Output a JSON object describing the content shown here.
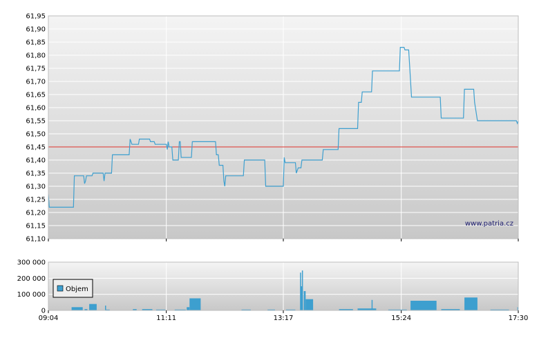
{
  "watermark": "www.patria.cz",
  "colors": {
    "price_line": "#3d9fcf",
    "reference_line": "#e0302a",
    "volume_fill": "#3d9fcf",
    "bg_top": "#f2f2f2",
    "bg_bottom": "#c9c9c9"
  },
  "chart_data": [
    {
      "type": "line",
      "title": "",
      "xlabel": "",
      "ylabel": "",
      "ylim": [
        61.1,
        61.95
      ],
      "xlim": [
        "09:04",
        "17:30"
      ],
      "grid": true,
      "y_ticks": [
        "61,95",
        "61,90",
        "61,85",
        "61,80",
        "61,75",
        "61,70",
        "61,65",
        "61,60",
        "61,55",
        "61,50",
        "61,45",
        "61,40",
        "61,35",
        "61,30",
        "61,25",
        "61,20",
        "61,15",
        "61,10"
      ],
      "x_ticks": [
        "09:04",
        "11:11",
        "13:17",
        "15:24",
        "17:30"
      ],
      "reference_line": 61.45,
      "series": [
        {
          "points": [
            [
              "09:04",
              61.27
            ],
            [
              "09:05",
              61.22
            ],
            [
              "09:31",
              61.22
            ],
            [
              "09:32",
              61.34
            ],
            [
              "09:42",
              61.34
            ],
            [
              "09:43",
              61.31
            ],
            [
              "09:44",
              61.32
            ],
            [
              "09:45",
              61.34
            ],
            [
              "09:51",
              61.34
            ],
            [
              "09:52",
              61.35
            ],
            [
              "10:03",
              61.35
            ],
            [
              "10:04",
              61.32
            ],
            [
              "10:05",
              61.35
            ],
            [
              "10:12",
              61.35
            ],
            [
              "10:13",
              61.42
            ],
            [
              "10:31",
              61.42
            ],
            [
              "10:32",
              61.48
            ],
            [
              "10:34",
              61.46
            ],
            [
              "10:41",
              61.46
            ],
            [
              "10:42",
              61.48
            ],
            [
              "10:53",
              61.48
            ],
            [
              "10:54",
              61.47
            ],
            [
              "10:58",
              61.47
            ],
            [
              "10:59",
              61.46
            ],
            [
              "11:11",
              61.46
            ],
            [
              "11:12",
              61.44
            ],
            [
              "11:13",
              61.47
            ],
            [
              "11:14",
              61.45
            ],
            [
              "11:17",
              61.45
            ],
            [
              "11:18",
              61.4
            ],
            [
              "11:24",
              61.4
            ],
            [
              "11:25",
              61.47
            ],
            [
              "11:26",
              61.47
            ],
            [
              "11:27",
              61.41
            ],
            [
              "11:38",
              61.41
            ],
            [
              "11:39",
              61.47
            ],
            [
              "12:04",
              61.47
            ],
            [
              "12:05",
              61.42
            ],
            [
              "12:07",
              61.42
            ],
            [
              "12:08",
              61.38
            ],
            [
              "12:12",
              61.38
            ],
            [
              "12:13",
              61.32
            ],
            [
              "12:14",
              61.3
            ],
            [
              "12:15",
              61.34
            ],
            [
              "12:34",
              61.34
            ],
            [
              "12:35",
              61.4
            ],
            [
              "12:57",
              61.4
            ],
            [
              "12:58",
              61.3
            ],
            [
              "13:17",
              61.3
            ],
            [
              "13:18",
              61.41
            ],
            [
              "13:19",
              61.39
            ],
            [
              "13:30",
              61.39
            ],
            [
              "13:31",
              61.35
            ],
            [
              "13:33",
              61.37
            ],
            [
              "13:36",
              61.37
            ],
            [
              "13:37",
              61.4
            ],
            [
              "13:59",
              61.4
            ],
            [
              "14:00",
              61.44
            ],
            [
              "14:16",
              61.44
            ],
            [
              "14:17",
              61.52
            ],
            [
              "14:37",
              61.52
            ],
            [
              "14:38",
              61.62
            ],
            [
              "14:41",
              61.62
            ],
            [
              "14:42",
              61.66
            ],
            [
              "14:52",
              61.66
            ],
            [
              "14:53",
              61.74
            ],
            [
              "15:22",
              61.74
            ],
            [
              "15:23",
              61.83
            ],
            [
              "15:27",
              61.83
            ],
            [
              "15:28",
              61.82
            ],
            [
              "15:32",
              61.82
            ],
            [
              "15:33",
              61.76
            ],
            [
              "15:35",
              61.64
            ],
            [
              "16:06",
              61.64
            ],
            [
              "16:07",
              61.56
            ],
            [
              "16:31",
              61.56
            ],
            [
              "16:32",
              61.67
            ],
            [
              "16:42",
              61.67
            ],
            [
              "16:43",
              61.62
            ],
            [
              "16:46",
              61.55
            ],
            [
              "17:28",
              61.55
            ],
            [
              "17:29",
              61.54
            ],
            [
              "17:30",
              61.55
            ]
          ]
        }
      ]
    },
    {
      "type": "bar",
      "title": "",
      "xlabel": "",
      "ylabel": "",
      "ylim": [
        0,
        300000
      ],
      "grid": true,
      "y_ticks": [
        "300 000",
        "200 000",
        "100 000",
        "0"
      ],
      "legend": {
        "label": "Objem",
        "placement": "left"
      },
      "series": [
        {
          "name": "Objem",
          "bars": [
            [
              "09:29",
              20000,
              12
            ],
            [
              "09:43",
              8000,
              3
            ],
            [
              "09:48",
              40000,
              8
            ],
            [
              "10:06",
              5000,
              4
            ],
            [
              "10:05",
              30000,
              1
            ],
            [
              "10:35",
              8000,
              4
            ],
            [
              "10:45",
              8000,
              11
            ],
            [
              "11:00",
              5000,
              10
            ],
            [
              "11:20",
              5000,
              12
            ],
            [
              "11:33",
              20000,
              3
            ],
            [
              "11:36",
              75000,
              12
            ],
            [
              "12:32",
              5000,
              10
            ],
            [
              "13:00",
              5000,
              8
            ],
            [
              "13:20",
              5000,
              10
            ],
            [
              "13:35",
              235000,
              1
            ],
            [
              "13:36",
              150000,
              1
            ],
            [
              "13:37",
              248000,
              1
            ],
            [
              "13:39",
              120000,
              2
            ],
            [
              "13:41",
              70000,
              8
            ],
            [
              "14:17",
              8000,
              15
            ],
            [
              "14:37",
              12000,
              20
            ],
            [
              "14:52",
              65000,
              1
            ],
            [
              "15:10",
              5000,
              20
            ],
            [
              "15:34",
              60000,
              28
            ],
            [
              "16:07",
              8000,
              20
            ],
            [
              "16:32",
              80000,
              14
            ],
            [
              "17:00",
              5000,
              20
            ],
            [
              "17:29",
              20000,
              1
            ]
          ]
        }
      ]
    }
  ]
}
